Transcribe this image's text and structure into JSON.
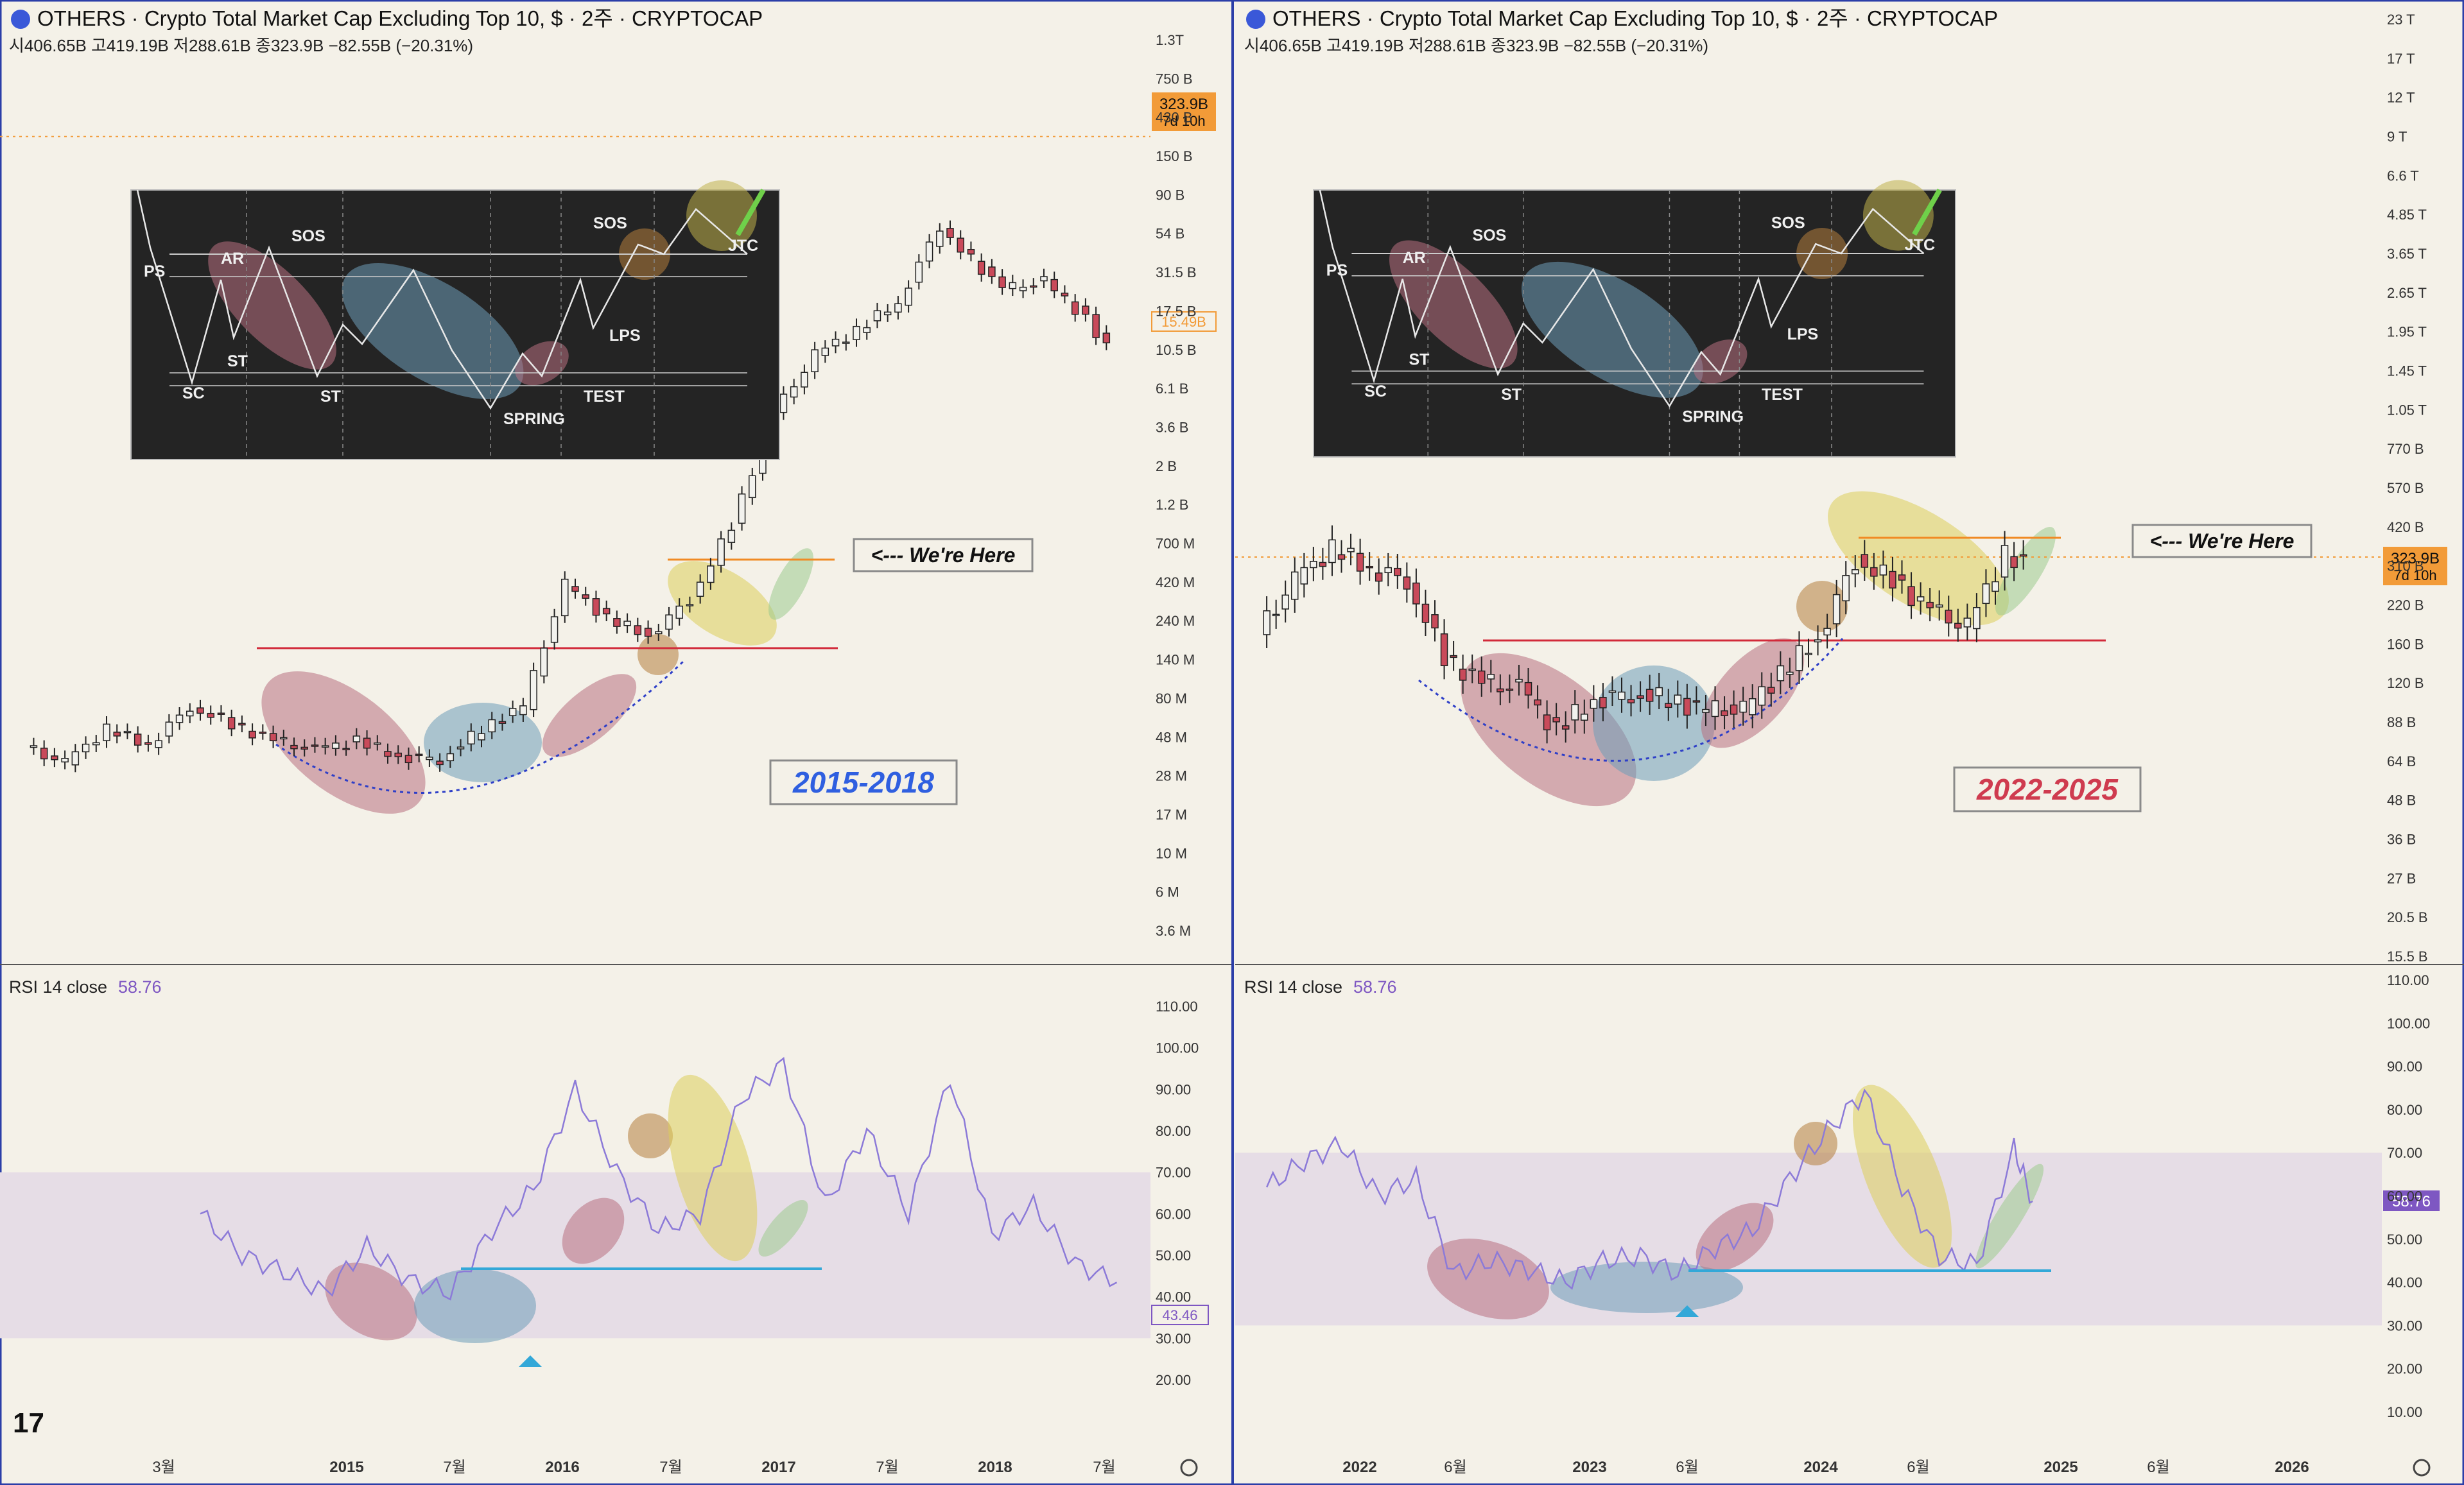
{
  "app": {
    "logo_icon": "tradingview-logo-icon",
    "settings_icon": "gear-icon"
  },
  "colors": {
    "background": "#f4f1e8",
    "up_candle": "#f2f2ee",
    "down_candle": "#c94a5a",
    "wick": "#222222",
    "rsi_line": "#8c7ad8",
    "rsi_band": "#e6dde6",
    "support_red": "#d22a3a",
    "resistance_orange": "#f08a24",
    "cyan_line": "#33a8d8",
    "price_tag": "#f29b38",
    "rsi_tag": "#7e57c2",
    "label_blue": "#2f5fe0",
    "label_red": "#cf3b4f",
    "ellipse_red": "#b8707f",
    "ellipse_blue": "#6e9cb8",
    "ellipse_yellow": "#dccd5a",
    "ellipse_brown": "#b57d3c",
    "ellipse_green": "#9cca8e"
  },
  "panels": [
    {
      "id": "left",
      "symbol": "OTHERS · Crypto Total Market Cap Excluding Top 10, $ · 2주 · CRYPTOCAP",
      "ohlc": "시406.65B 고419.19B 저288.61B 종323.9B −82.55B (−20.31%)",
      "period_label": "2015-2018",
      "here_label": "<--- We're Here",
      "price_tag": {
        "value": "323.9B",
        "countdown": "7d 10h"
      },
      "last_price_tag": "15.49B",
      "rsi_title": "RSI 14 close",
      "rsi_value": "58.76",
      "rsi_tag": "43.46",
      "price_axis": [
        "1.3T",
        "750 B",
        "430 B",
        "150 B",
        "90 B",
        "54 B",
        "31.5 B",
        "17.5 B",
        "10.5 B",
        "6.1 B",
        "3.6 B",
        "2 B",
        "1.2 B",
        "700 M",
        "420 M",
        "240 M",
        "140 M",
        "80 M",
        "48 M",
        "28 M",
        "17 M",
        "10 M",
        "6 M",
        "3.6 M"
      ],
      "rsi_axis": [
        "110.00",
        "100.00",
        "90.00",
        "80.00",
        "70.00",
        "60.00",
        "50.00",
        "40.00",
        "30.00",
        "20.00"
      ],
      "time_axis": [
        "3월",
        "2015",
        "7월",
        "2016",
        "7월",
        "2017",
        "7월",
        "2018",
        "7월"
      ],
      "wyckoff": [
        "PS",
        "AR",
        "SOS",
        "SC",
        "ST",
        "ST",
        "SPRING",
        "TEST",
        "LPS",
        "SOS",
        "JTC"
      ]
    },
    {
      "id": "right",
      "symbol": "OTHERS · Crypto Total Market Cap Excluding Top 10, $ · 2주 · CRYPTOCAP",
      "ohlc": "시406.65B 고419.19B 저288.61B 종323.9B −82.55B (−20.31%)",
      "period_label": "2022-2025",
      "here_label": "<--- We're Here",
      "price_tag": {
        "value": "323.9B",
        "countdown": "7d 10h"
      },
      "rsi_title": "RSI 14 close",
      "rsi_value": "58.76",
      "rsi_tag": "58.76",
      "price_axis": [
        "23 T",
        "17 T",
        "12 T",
        "9 T",
        "6.6 T",
        "4.85 T",
        "3.65 T",
        "2.65 T",
        "1.95 T",
        "1.45 T",
        "1.05 T",
        "770 B",
        "570 B",
        "420 B",
        "310 B",
        "220 B",
        "160 B",
        "120 B",
        "88 B",
        "64 B",
        "48 B",
        "36 B",
        "27 B",
        "20.5 B",
        "15.5 B"
      ],
      "rsi_axis": [
        "110.00",
        "100.00",
        "90.00",
        "80.00",
        "70.00",
        "60.00",
        "50.00",
        "40.00",
        "30.00",
        "20.00",
        "10.00"
      ],
      "time_axis": [
        "2022",
        "6월",
        "2023",
        "6월",
        "2024",
        "6월",
        "2025",
        "6월",
        "2026"
      ],
      "wyckoff": [
        "PS",
        "AR",
        "SOS",
        "SC",
        "ST",
        "ST",
        "SPRING",
        "TEST",
        "LPS",
        "SOS",
        "JTC"
      ]
    }
  ],
  "chart_data": [
    {
      "type": "candlestick",
      "title": "OTHERS · Crypto Total Market Cap Excluding Top 10, $ · 2주 · CRYPTOCAP",
      "log_scale": true,
      "ylim": [
        3600000.0,
        1300000000000.0
      ],
      "x_range": [
        "2014-03",
        "2018-09"
      ],
      "close_series": [
        {
          "x": "2014-04",
          "y": 50000000.0
        },
        {
          "x": "2014-06",
          "y": 40000000.0
        },
        {
          "x": "2014-08",
          "y": 65000000.0
        },
        {
          "x": "2014-10",
          "y": 52000000.0
        },
        {
          "x": "2014-12",
          "y": 90000000.0
        },
        {
          "x": "2015-02",
          "y": 70000000.0
        },
        {
          "x": "2015-04",
          "y": 55000000.0
        },
        {
          "x": "2015-06",
          "y": 48000000.0
        },
        {
          "x": "2015-08",
          "y": 55000000.0
        },
        {
          "x": "2015-10",
          "y": 44000000.0
        },
        {
          "x": "2015-12",
          "y": 42000000.0
        },
        {
          "x": "2016-02",
          "y": 65000000.0
        },
        {
          "x": "2016-04",
          "y": 90000000.0
        },
        {
          "x": "2016-06",
          "y": 520000000.0
        },
        {
          "x": "2016-08",
          "y": 320000000.0
        },
        {
          "x": "2016-10",
          "y": 250000000.0
        },
        {
          "x": "2016-12",
          "y": 420000000.0
        },
        {
          "x": "2017-02",
          "y": 1200000000.0
        },
        {
          "x": "2017-04",
          "y": 6000000000.0
        },
        {
          "x": "2017-06",
          "y": 14000000000.0
        },
        {
          "x": "2017-08",
          "y": 20000000000.0
        },
        {
          "x": "2017-10",
          "y": 30000000000.0
        },
        {
          "x": "2017-12",
          "y": 90000000000.0
        },
        {
          "x": "2018-01",
          "y": 65000000000.0
        },
        {
          "x": "2018-03",
          "y": 36000000000.0
        },
        {
          "x": "2018-05",
          "y": 40000000000.0
        },
        {
          "x": "2018-07",
          "y": 24000000000.0
        },
        {
          "x": "2018-08",
          "y": 15490000000.0
        }
      ],
      "levels": {
        "support": 160000000.0,
        "resistance": 650000000.0,
        "current_price": 323900000000.0
      }
    },
    {
      "type": "line",
      "title": "RSI 14 close",
      "ylim": [
        20,
        110
      ],
      "band": [
        30,
        70
      ],
      "x_range": [
        "2014-03",
        "2018-09"
      ],
      "series": [
        {
          "name": "RSI 14 close",
          "values": [
            {
              "x": "2014-12",
              "y": 60
            },
            {
              "x": "2015-02",
              "y": 50
            },
            {
              "x": "2015-04",
              "y": 46
            },
            {
              "x": "2015-06",
              "y": 41
            },
            {
              "x": "2015-08",
              "y": 52
            },
            {
              "x": "2015-10",
              "y": 44
            },
            {
              "x": "2015-12",
              "y": 41
            },
            {
              "x": "2016-02",
              "y": 56
            },
            {
              "x": "2016-04",
              "y": 66
            },
            {
              "x": "2016-06",
              "y": 90
            },
            {
              "x": "2016-08",
              "y": 70
            },
            {
              "x": "2016-10",
              "y": 56
            },
            {
              "x": "2016-12",
              "y": 60
            },
            {
              "x": "2017-02",
              "y": 88
            },
            {
              "x": "2017-04",
              "y": 96
            },
            {
              "x": "2017-06",
              "y": 62
            },
            {
              "x": "2017-08",
              "y": 80
            },
            {
              "x": "2017-10",
              "y": 60
            },
            {
              "x": "2017-12",
              "y": 93
            },
            {
              "x": "2018-02",
              "y": 55
            },
            {
              "x": "2018-04",
              "y": 62
            },
            {
              "x": "2018-06",
              "y": 48
            },
            {
              "x": "2018-08",
              "y": 43.46
            }
          ]
        }
      ]
    },
    {
      "type": "candlestick",
      "title": "OTHERS · Crypto Total Market Cap Excluding Top 10, $ · 2주 · CRYPTOCAP",
      "log_scale": true,
      "ylim": [
        15500000000.0,
        23000000000000.0
      ],
      "x_range": [
        "2021-06",
        "2026-06"
      ],
      "close_series": [
        {
          "x": "2021-07",
          "y": 190000000000.0
        },
        {
          "x": "2021-09",
          "y": 290000000000.0
        },
        {
          "x": "2021-11",
          "y": 370000000000.0
        },
        {
          "x": "2022-01",
          "y": 320000000000.0
        },
        {
          "x": "2022-03",
          "y": 290000000000.0
        },
        {
          "x": "2022-05",
          "y": 160000000000.0
        },
        {
          "x": "2022-07",
          "y": 130000000000.0
        },
        {
          "x": "2022-09",
          "y": 125000000000.0
        },
        {
          "x": "2022-11",
          "y": 90000000000.0
        },
        {
          "x": "2023-01",
          "y": 115000000000.0
        },
        {
          "x": "2023-03",
          "y": 120000000000.0
        },
        {
          "x": "2023-05",
          "y": 115000000000.0
        },
        {
          "x": "2023-07",
          "y": 105000000000.0
        },
        {
          "x": "2023-09",
          "y": 105000000000.0
        },
        {
          "x": "2023-11",
          "y": 140000000000.0
        },
        {
          "x": "2024-01",
          "y": 185000000000.0
        },
        {
          "x": "2024-03",
          "y": 340000000000.0
        },
        {
          "x": "2024-05",
          "y": 290000000000.0
        },
        {
          "x": "2024-07",
          "y": 230000000000.0
        },
        {
          "x": "2024-09",
          "y": 200000000000.0
        },
        {
          "x": "2024-11",
          "y": 360000000000.0
        },
        {
          "x": "2024-12",
          "y": 323900000000.0
        }
      ],
      "levels": {
        "support": 175000000000.0,
        "resistance": 370000000000.0,
        "current_price": 323900000000.0
      }
    },
    {
      "type": "line",
      "title": "RSI 14 close",
      "ylim": [
        10,
        110
      ],
      "band": [
        30,
        70
      ],
      "x_range": [
        "2021-06",
        "2026-06"
      ],
      "series": [
        {
          "name": "RSI 14 close",
          "values": [
            {
              "x": "2021-07",
              "y": 62
            },
            {
              "x": "2021-09",
              "y": 68
            },
            {
              "x": "2021-11",
              "y": 72
            },
            {
              "x": "2022-01",
              "y": 60
            },
            {
              "x": "2022-03",
              "y": 64
            },
            {
              "x": "2022-05",
              "y": 42
            },
            {
              "x": "2022-07",
              "y": 45
            },
            {
              "x": "2022-09",
              "y": 43
            },
            {
              "x": "2022-11",
              "y": 40
            },
            {
              "x": "2023-01",
              "y": 45
            },
            {
              "x": "2023-03",
              "y": 46
            },
            {
              "x": "2023-05",
              "y": 42
            },
            {
              "x": "2023-07",
              "y": 48
            },
            {
              "x": "2023-09",
              "y": 52
            },
            {
              "x": "2023-11",
              "y": 64
            },
            {
              "x": "2024-01",
              "y": 75
            },
            {
              "x": "2024-03",
              "y": 84
            },
            {
              "x": "2024-05",
              "y": 62
            },
            {
              "x": "2024-07",
              "y": 46
            },
            {
              "x": "2024-09",
              "y": 44
            },
            {
              "x": "2024-11",
              "y": 71
            },
            {
              "x": "2024-12",
              "y": 58.76
            }
          ]
        }
      ]
    }
  ]
}
